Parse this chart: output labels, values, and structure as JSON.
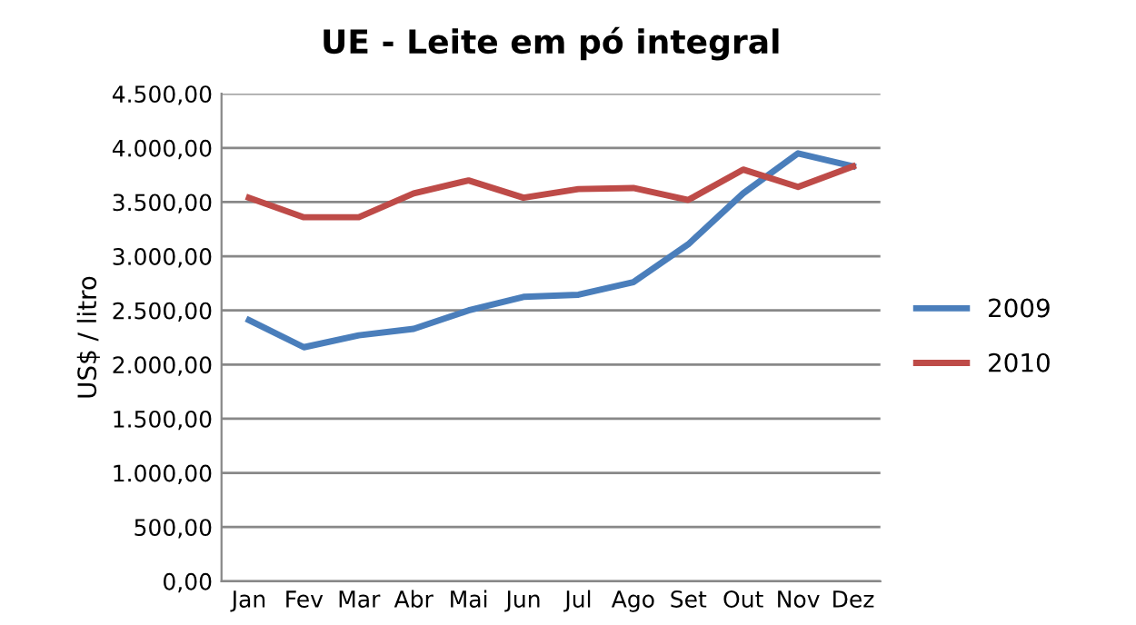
{
  "chart_data": {
    "type": "line",
    "title": "UE - Leite em pó integral",
    "ylabel": "US$ / litro",
    "categories": [
      "Jan",
      "Fev",
      "Mar",
      "Abr",
      "Mai",
      "Jun",
      "Jul",
      "Ago",
      "Set",
      "Out",
      "Nov",
      "Dez"
    ],
    "series": [
      {
        "name": "2009",
        "color": "#4a7ebb",
        "values": [
          2410,
          2160,
          2270,
          2330,
          2500,
          2625,
          2645,
          2760,
          3110,
          3580,
          3950,
          3830
        ]
      },
      {
        "name": "2010",
        "color": "#be4b48",
        "values": [
          3540,
          3360,
          3360,
          3580,
          3700,
          3540,
          3620,
          3630,
          3520,
          3800,
          3640,
          3830
        ]
      }
    ],
    "ylim": [
      0,
      4500
    ],
    "yticks": [
      {
        "value": 0,
        "label": "0,00"
      },
      {
        "value": 500,
        "label": "500,00"
      },
      {
        "value": 1000,
        "label": "1.000,00"
      },
      {
        "value": 1500,
        "label": "1.500,00"
      },
      {
        "value": 2000,
        "label": "2.000,00"
      },
      {
        "value": 2500,
        "label": "2.500,00"
      },
      {
        "value": 3000,
        "label": "3.000,00"
      },
      {
        "value": 3500,
        "label": "3.500,00"
      },
      {
        "value": 4000,
        "label": "4.000,00"
      },
      {
        "value": 4500,
        "label": "4.500,00"
      }
    ],
    "grid": "y",
    "legend": "right",
    "marker": "none",
    "line_style": "solid"
  }
}
